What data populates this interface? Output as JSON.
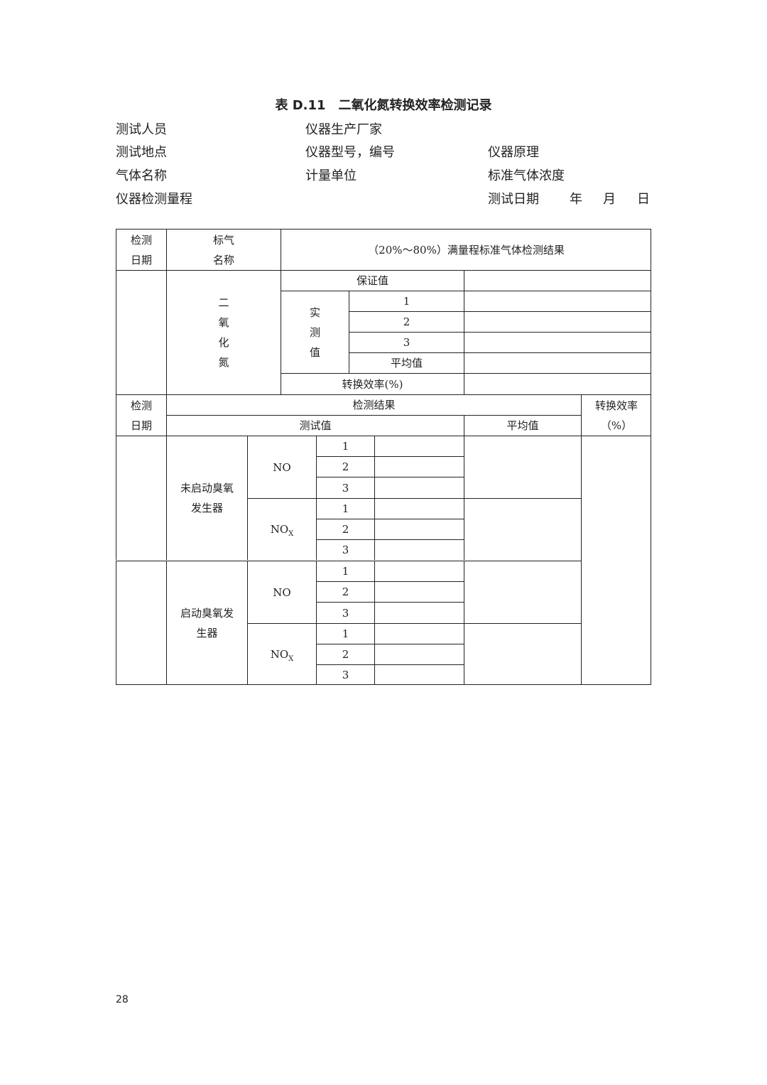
{
  "title": "表 D.11　二氧化氮转换效率检测记录",
  "info": {
    "tester": "测试人员",
    "manufacturer": "仪器生产厂家",
    "location": "测试地点",
    "model": "仪器型号，编号",
    "principle": "仪器原理",
    "gas_name": "气体名称",
    "unit": "计量单位",
    "std_conc": "标准气体浓度",
    "range": "仪器检测量程",
    "date": "测试日期",
    "year": "年",
    "month": "月",
    "day": "日"
  },
  "table": {
    "h_date": "检测\n日期",
    "h_gas": "标气\n名称",
    "h_result": "（20%～80%）满量程标准气体检测结果",
    "gas": "二\n氧\n化\n氮",
    "guarantee": "保证值",
    "measured": "实\n测\n值",
    "nums": [
      "1",
      "2",
      "3"
    ],
    "avg": "平均值",
    "efficiency": "转换效率(%)",
    "h2_date": "检测\n日期",
    "h2_result": "检测结果",
    "h2_eff": "转换效率\n（%）",
    "h2_test": "测试值",
    "h2_avg": "平均值",
    "groups": [
      {
        "label": "未启动臭氧\n发生器"
      },
      {
        "label": "启动臭氧发\n生器"
      }
    ],
    "no": "NO",
    "nox_base": "NO",
    "nox_sub": "X"
  },
  "page_number": "28"
}
